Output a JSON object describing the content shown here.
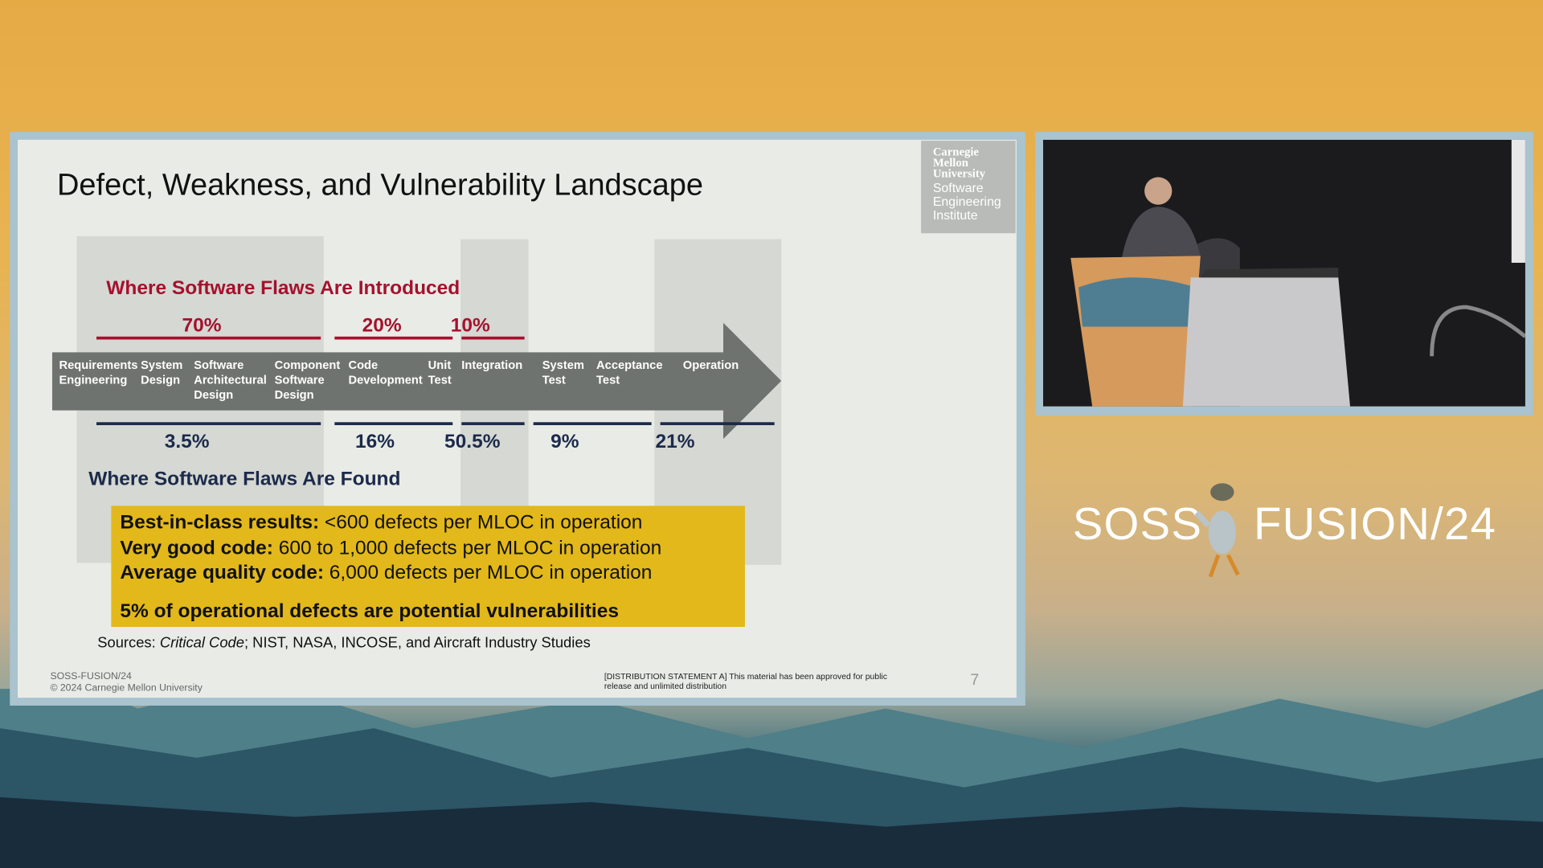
{
  "slide": {
    "title": "Defect, Weakness, and Vulnerability Landscape",
    "logo": {
      "line1": "Carnegie",
      "line2": "Mellon",
      "line3": "University",
      "line4": "Software",
      "line5": "Engineering",
      "line6": "Institute"
    },
    "introduced_heading": "Where Software Flaws Are Introduced",
    "introduced_pcts": [
      "70%",
      "20%",
      "10%"
    ],
    "stages": [
      "Requirements\nEngineering",
      "System\nDesign",
      "Software\nArchitectural\nDesign",
      "Component\nSoftware\nDesign",
      "Code\nDevelopment",
      "Unit\nTest",
      "Integration",
      "System\nTest",
      "Acceptance\nTest",
      "Operation"
    ],
    "found_pcts": [
      "3.5%",
      "16%",
      "50.5%",
      "9%",
      "21%"
    ],
    "found_heading": "Where Software Flaws Are Found",
    "box": {
      "l1b": "Best-in-class results:",
      "l1": " <600 defects per MLOC in operation",
      "l2b": "Very good code:",
      "l2": " 600 to 1,000 defects per MLOC in operation",
      "l3b": "Average quality code:",
      "l3": " 6,000 defects per MLOC in operation",
      "l4": "5% of operational defects are potential vulnerabilities"
    },
    "sources_prefix": "Sources: ",
    "sources_italic": "Critical Code",
    "sources_rest": "; NIST, NASA, INCOSE, and Aircraft Industry Studies",
    "footer_event": "SOSS-FUSION/24",
    "footer_copyright": "© 2024 Carnegie Mellon University",
    "distribution": "[DISTRIBUTION STATEMENT A] This material has been approved for public release and unlimited distribution",
    "page_number": "7"
  },
  "event_logo": {
    "left": "SOSS",
    "right": "FUSION/24"
  },
  "colors": {
    "accent_red": "#a5112d",
    "navy": "#1c2a4a",
    "highlight": "#e2b81a",
    "arrow": "#6f736f"
  }
}
